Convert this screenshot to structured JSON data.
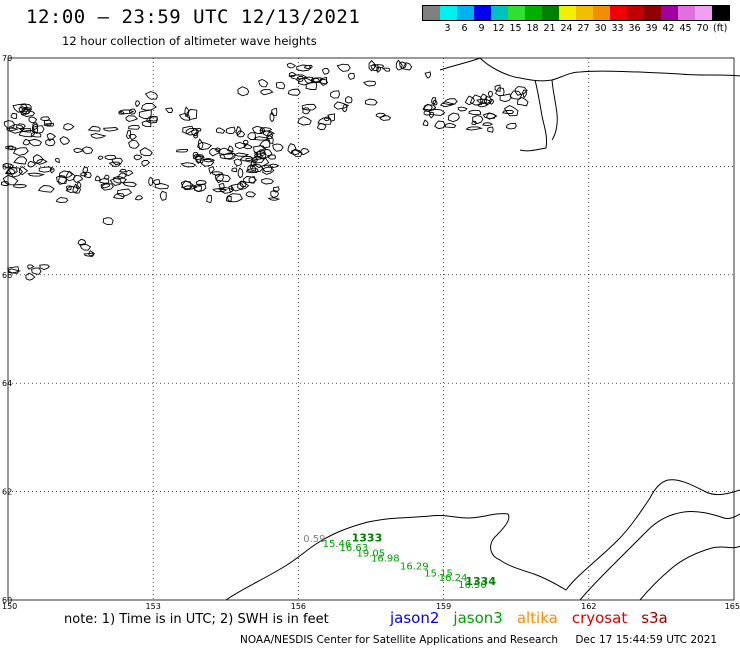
{
  "header": {
    "title": "12:00 – 23:59 UTC 12/13/2021",
    "subtitle": "12 hour collection of altimeter wave heights"
  },
  "legend": {
    "colors": [
      "#808080",
      "#00f0f0",
      "#00b0f0",
      "#0000f0",
      "#00c0c0",
      "#30e030",
      "#00b000",
      "#008000",
      "#f0f000",
      "#f0c000",
      "#f09000",
      "#f00000",
      "#c00000",
      "#900000",
      "#a000a0",
      "#e070e0",
      "#f0a0f0",
      "#000000"
    ],
    "labels": [
      "3",
      "6",
      "9",
      "12",
      "15",
      "18",
      "21",
      "24",
      "27",
      "30",
      "33",
      "36",
      "39",
      "42",
      "45",
      "70"
    ],
    "unit": "(ft)"
  },
  "axes": {
    "lon_labels": [
      "150",
      "153",
      "156",
      "159",
      "162",
      "165"
    ],
    "lat_labels": [
      "70",
      "68",
      "66",
      "64",
      "62",
      "60"
    ]
  },
  "track": {
    "pass_labels": [
      {
        "text": "1333",
        "lon": 157.1,
        "lat": 61.08
      },
      {
        "text": "1334",
        "lon": 159.45,
        "lat": 60.28
      }
    ],
    "swh_values": [
      {
        "value": "0.59",
        "lon": 156.1,
        "lat": 61.07,
        "sat": "unknown"
      },
      {
        "value": "15.46",
        "lon": 156.5,
        "lat": 60.98,
        "sat": "jason3"
      },
      {
        "value": "16.63",
        "lon": 156.85,
        "lat": 60.9,
        "sat": "jason3"
      },
      {
        "value": "19.05",
        "lon": 157.2,
        "lat": 60.8,
        "sat": "jason3"
      },
      {
        "value": "16.98",
        "lon": 157.5,
        "lat": 60.71,
        "sat": "jason3"
      },
      {
        "value": "16.29",
        "lon": 158.1,
        "lat": 60.56,
        "sat": "jason3"
      },
      {
        "value": "15.15",
        "lon": 158.6,
        "lat": 60.43,
        "sat": "jason3"
      },
      {
        "value": "16.24",
        "lon": 158.9,
        "lat": 60.35,
        "sat": "jason3"
      },
      {
        "value": "16.50",
        "lon": 159.3,
        "lat": 60.22,
        "sat": "jason3"
      }
    ]
  },
  "footer": {
    "note": "note: 1) Time is in UTC; 2) SWH is in feet",
    "satellites": [
      {
        "name": "jason2",
        "color": "#0000ff"
      },
      {
        "name": "jason3",
        "color": "#00a000"
      },
      {
        "name": "altika",
        "color": "#ff8c00"
      },
      {
        "name": "cryosat",
        "color": "#e00000"
      },
      {
        "name": "s3a",
        "color": "#a00000"
      }
    ],
    "credit": "NOAA/NESDIS Center for Satellite Applications and Research",
    "timestamp": "Dec 17 15:44:59 UTC 2021"
  }
}
